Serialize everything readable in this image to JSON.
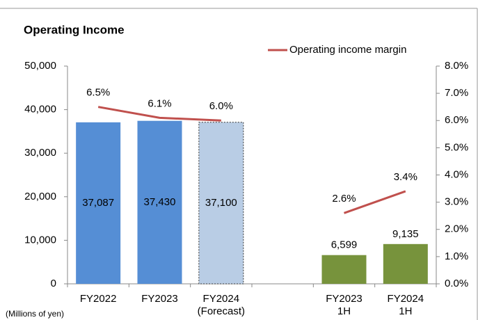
{
  "chart_data": {
    "type": "bar_line",
    "title": "Operating Income",
    "unit_note": "(Millions of yen)",
    "categories": [
      "FY2022",
      "FY2023",
      "FY2024\n(Forecast)",
      null,
      "FY2023\n1H",
      "FY2024\n1H"
    ],
    "series": [
      {
        "type": "bar",
        "colors": [
          "#558ed5",
          "#558ed5",
          "#b9cde5",
          null,
          "#77933c",
          "#77933c"
        ],
        "values": [
          37087,
          37430,
          37100,
          null,
          6599,
          9135
        ],
        "value_labels": [
          "37,087",
          "37,430",
          "37,100",
          null,
          "6,599",
          "9,135"
        ]
      },
      {
        "type": "line",
        "name": "Operating income margin",
        "color": "#c0504d",
        "axis": "y2",
        "values": [
          6.5,
          6.1,
          6.0,
          null,
          2.6,
          3.4
        ],
        "value_labels": [
          "6.5%",
          "6.1%",
          "6.0%",
          null,
          "2.6%",
          "3.4%"
        ]
      }
    ],
    "ylim": [
      0,
      50000
    ],
    "yticks": [
      0,
      {
        "value": 10000,
        "label": "10,000"
      },
      {
        "value": 20000,
        "label": "20,000"
      },
      {
        "value": 30000,
        "label": "30,000"
      },
      {
        "value": 40000,
        "label": "40,000"
      },
      {
        "value": 50000,
        "label": "50,000"
      }
    ],
    "y2lim": [
      0,
      8
    ],
    "y2ticks": [
      {
        "value": 0,
        "label": "0.0%"
      },
      {
        "value": 1,
        "label": "1.0%"
      },
      {
        "value": 2,
        "label": "2.0%"
      },
      {
        "value": 3,
        "label": "3.0%"
      },
      {
        "value": 4,
        "label": "4.0%"
      },
      {
        "value": 5,
        "label": "5.0%"
      },
      {
        "value": 6,
        "label": "6.0%"
      },
      {
        "value": 7,
        "label": "7.0%"
      },
      {
        "value": 8,
        "label": "8.0%"
      }
    ],
    "legend": "top-right"
  }
}
